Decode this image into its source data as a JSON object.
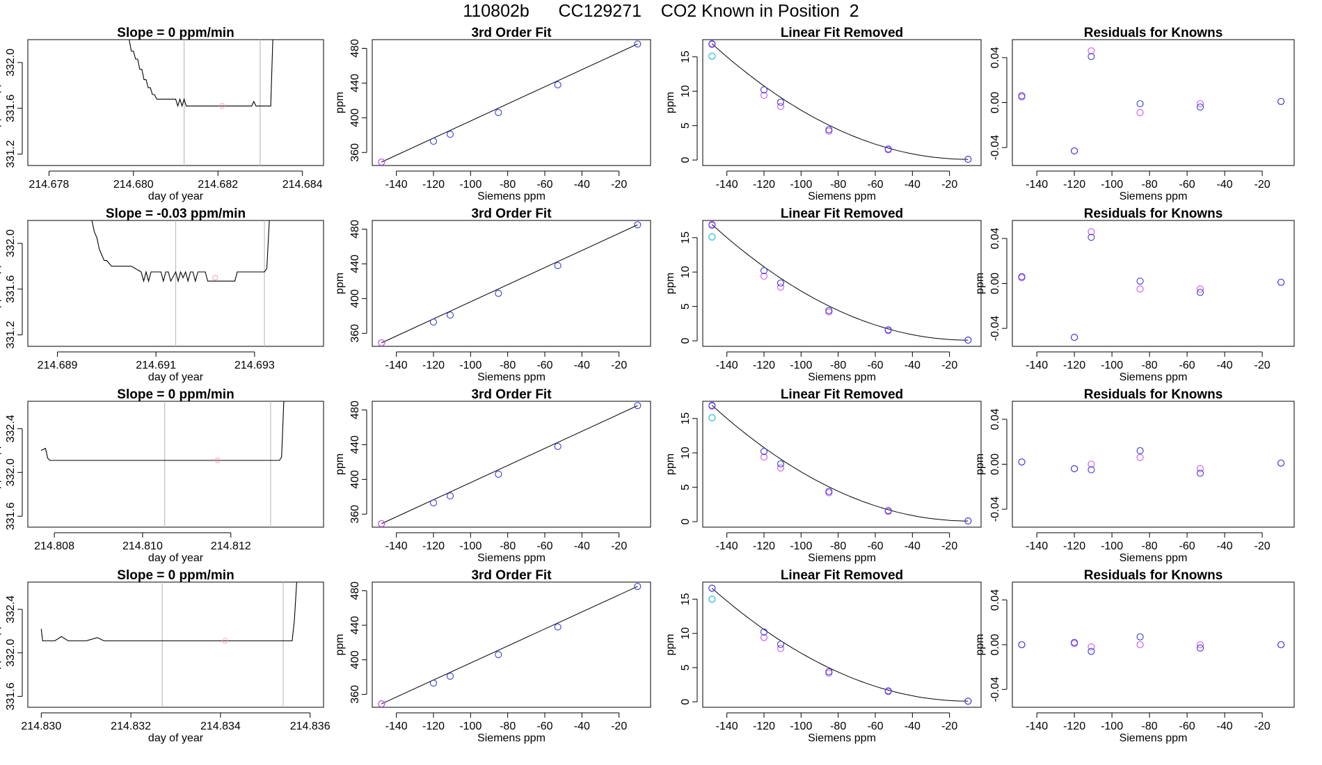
{
  "header": {
    "title": "110802b      CC129271    CO2 Known in Position  2"
  },
  "colors": {
    "trace": "#000000",
    "vline": "#bdbdbd",
    "fit_point": "#3a3ad6",
    "residual_point": "#cc55ee",
    "linear_point": "#cc55ee",
    "cyan_point": "#22bbdd",
    "time_marker": "#f0a0c0"
  },
  "chart_data": [
    {
      "type": "line",
      "panel": "time",
      "row": 0,
      "title": "Slope =  0  ppm/min",
      "xlabel": "day of year",
      "ylabel": "approx. ppm",
      "xlim": [
        214.6775,
        214.6845
      ],
      "xticks": [
        214.678,
        214.68,
        214.682,
        214.684
      ],
      "xtick_labels": [
        "214.678",
        "214.680",
        "214.682",
        "214.684"
      ],
      "ylim": [
        331.1,
        332.2
      ],
      "yticks": [
        331.2,
        331.6,
        332.0
      ],
      "ytick_labels": [
        "331.2",
        "331.6",
        "332.0"
      ],
      "trace_x": [
        214.6799,
        214.67995,
        214.68,
        214.68005,
        214.6801,
        214.68015,
        214.6802,
        214.68025,
        214.6803,
        214.68035,
        214.6804,
        214.68045,
        214.6805,
        214.68055,
        214.6806,
        214.6807,
        214.6808,
        214.6809,
        214.681,
        214.68105,
        214.6811,
        214.68115,
        214.6812,
        214.68125,
        214.6813,
        214.6814,
        214.6815,
        214.682,
        214.6825,
        214.6828,
        214.68285,
        214.6829,
        214.68295,
        214.683,
        214.6831,
        214.6832,
        214.68325,
        214.6833
      ],
      "trace_y": [
        332.2,
        332.1,
        332.1,
        332.03,
        332.03,
        331.94,
        331.94,
        331.85,
        331.85,
        331.78,
        331.78,
        331.72,
        331.72,
        331.68,
        331.68,
        331.68,
        331.68,
        331.68,
        331.68,
        331.62,
        331.68,
        331.62,
        331.68,
        331.62,
        331.62,
        331.62,
        331.62,
        331.62,
        331.62,
        331.62,
        331.66,
        331.62,
        331.62,
        331.62,
        331.62,
        331.62,
        331.62,
        332.2
      ],
      "vlines": [
        214.6812,
        214.683
      ],
      "marker": [
        214.6821,
        331.62
      ]
    },
    {
      "type": "scatter",
      "panel": "fit",
      "row": 0,
      "title": "3rd Order Fit",
      "xlabel": "Siemens ppm",
      "ylabel": "ppm",
      "xlim": [
        -153,
        -3
      ],
      "xticks": [
        -140,
        -120,
        -100,
        -80,
        -60,
        -40,
        -20
      ],
      "xtick_labels": [
        "-140",
        "-120",
        "-100",
        "-80",
        "-60",
        "-40",
        "-20"
      ],
      "ylim": [
        345,
        490
      ],
      "yticks": [
        360,
        400,
        440,
        480
      ],
      "ytick_labels": [
        "360",
        "400",
        "440",
        "480"
      ],
      "x": [
        -148,
        -120,
        -111,
        -85,
        -53,
        -10
      ],
      "y": [
        349,
        373,
        381,
        406,
        438,
        485
      ]
    },
    {
      "type": "scatter",
      "panel": "linear",
      "row": 0,
      "title": "Linear Fit Removed",
      "xlabel": "Siemens ppm",
      "ylabel": "ppm",
      "xlim": [
        -153,
        -3
      ],
      "xticks": [
        -140,
        -120,
        -100,
        -80,
        -60,
        -40,
        -20
      ],
      "xtick_labels": [
        "-140",
        "-120",
        "-100",
        "-80",
        "-60",
        "-40",
        "-20"
      ],
      "ylim": [
        -0.8,
        17.5
      ],
      "yticks": [
        0,
        5,
        10,
        15
      ],
      "ytick_labels": [
        "0",
        "5",
        "10",
        "15"
      ],
      "x": [
        -148,
        -120,
        -111,
        -85,
        -53,
        -10
      ],
      "y_fit": [
        16.9,
        10.2,
        8.4,
        4.4,
        1.6,
        0.1
      ],
      "y_linear": [
        16.8,
        9.4,
        7.8,
        4.2,
        1.5,
        0.1
      ],
      "cyan": [
        -148,
        15.1
      ]
    },
    {
      "type": "scatter",
      "panel": "resid",
      "row": 0,
      "title": "Residuals for Knowns",
      "xlabel": "Siemens ppm",
      "ylabel": "",
      "xlim": [
        -153,
        -3
      ],
      "xticks": [
        -140,
        -120,
        -100,
        -80,
        -60,
        -40,
        -20
      ],
      "xtick_labels": [
        "-140",
        "-120",
        "-100",
        "-80",
        "-60",
        "-40",
        "-20"
      ],
      "ylim": [
        -0.056,
        0.056
      ],
      "yticks": [
        -0.04,
        0.0,
        0.04
      ],
      "ytick_labels": [
        "-0.04",
        "0.00",
        "0.04"
      ],
      "x": [
        -148,
        -120,
        -111,
        -85,
        -53,
        -10
      ],
      "y_a": [
        0.006,
        -0.043,
        0.041,
        -0.001,
        -0.004,
        0.001
      ],
      "y_b": [
        0.005,
        -0.043,
        0.046,
        -0.009,
        -0.001,
        0.001
      ]
    },
    {
      "type": "line",
      "panel": "time",
      "row": 1,
      "title": "Slope =  -0.03  ppm/min",
      "xlabel": "day of year",
      "ylabel": "approx. ppm",
      "xlim": [
        214.6884,
        214.6944
      ],
      "xticks": [
        214.689,
        214.691,
        214.693
      ],
      "xtick_labels": [
        "214.689",
        "214.691",
        "214.693"
      ],
      "ylim": [
        331.1,
        332.2
      ],
      "yticks": [
        331.2,
        331.6,
        332.0
      ],
      "ytick_labels": [
        "331.2",
        "331.6",
        "332.0"
      ],
      "trace_x": [
        214.6897,
        214.68975,
        214.6898,
        214.68985,
        214.6899,
        214.68995,
        214.69,
        214.6901,
        214.6902,
        214.6905,
        214.6907,
        214.69075,
        214.6908,
        214.69085,
        214.6909,
        214.6911,
        214.69115,
        214.6912,
        214.69125,
        214.6913,
        214.6914,
        214.69145,
        214.6915,
        214.69155,
        214.6916,
        214.69165,
        214.6917,
        214.69175,
        214.6918,
        214.69185,
        214.6919,
        214.692,
        214.69205,
        214.6921,
        214.6923,
        214.6926,
        214.69265,
        214.6928,
        214.6932,
        214.69325,
        214.6933
      ],
      "trace_y": [
        332.2,
        332.1,
        332.05,
        331.95,
        331.9,
        331.85,
        331.85,
        331.8,
        331.8,
        331.8,
        331.75,
        331.67,
        331.75,
        331.67,
        331.75,
        331.75,
        331.67,
        331.75,
        331.75,
        331.67,
        331.75,
        331.67,
        331.75,
        331.7,
        331.75,
        331.67,
        331.75,
        331.75,
        331.67,
        331.75,
        331.75,
        331.75,
        331.67,
        331.67,
        331.67,
        331.67,
        331.75,
        331.75,
        331.75,
        331.78,
        332.2
      ],
      "vlines": [
        214.6914,
        214.6932
      ],
      "marker": [
        214.6922,
        331.7
      ]
    },
    {
      "type": "scatter",
      "panel": "fit",
      "row": 1,
      "title": "3rd Order Fit",
      "xlabel": "Siemens ppm",
      "ylabel": "ppm",
      "xlim": [
        -153,
        -3
      ],
      "xticks": [
        -140,
        -120,
        -100,
        -80,
        -60,
        -40,
        -20
      ],
      "xtick_labels": [
        "-140",
        "-120",
        "-100",
        "-80",
        "-60",
        "-40",
        "-20"
      ],
      "ylim": [
        345,
        490
      ],
      "yticks": [
        360,
        400,
        440,
        480
      ],
      "ytick_labels": [
        "360",
        "400",
        "440",
        "480"
      ],
      "x": [
        -148,
        -120,
        -111,
        -85,
        -53,
        -10
      ],
      "y": [
        349,
        373,
        381,
        406,
        438,
        485
      ]
    },
    {
      "type": "scatter",
      "panel": "linear",
      "row": 1,
      "title": "Linear Fit Removed",
      "xlabel": "Siemens ppm",
      "ylabel": "ppm",
      "xlim": [
        -153,
        -3
      ],
      "xticks": [
        -140,
        -120,
        -100,
        -80,
        -60,
        -40,
        -20
      ],
      "xtick_labels": [
        "-140",
        "-120",
        "-100",
        "-80",
        "-60",
        "-40",
        "-20"
      ],
      "ylim": [
        -0.8,
        17.5
      ],
      "yticks": [
        0,
        5,
        10,
        15
      ],
      "ytick_labels": [
        "0",
        "5",
        "10",
        "15"
      ],
      "x": [
        -148,
        -120,
        -111,
        -85,
        -53,
        -10
      ],
      "y_fit": [
        16.9,
        10.2,
        8.4,
        4.4,
        1.6,
        0.1
      ],
      "y_linear": [
        16.8,
        9.4,
        7.8,
        4.2,
        1.5,
        0.1
      ],
      "cyan": [
        -148,
        15.1
      ]
    },
    {
      "type": "scatter",
      "panel": "resid",
      "row": 1,
      "title": "Residuals for Knowns",
      "xlabel": "Siemens ppm",
      "ylabel": "ppm",
      "xlim": [
        -153,
        -3
      ],
      "xticks": [
        -140,
        -120,
        -100,
        -80,
        -60,
        -40,
        -20
      ],
      "xtick_labels": [
        "-140",
        "-120",
        "-100",
        "-80",
        "-60",
        "-40",
        "-20"
      ],
      "ylim": [
        -0.056,
        0.056
      ],
      "yticks": [
        -0.04,
        0.0,
        0.04
      ],
      "ytick_labels": [
        "-0.04",
        "0.00",
        "0.04"
      ],
      "x": [
        -148,
        -120,
        -111,
        -85,
        -53,
        -10
      ],
      "y_a": [
        0.006,
        -0.048,
        0.041,
        0.002,
        -0.008,
        0.001
      ],
      "y_b": [
        0.005,
        -0.048,
        0.046,
        -0.005,
        -0.005,
        0.001
      ]
    },
    {
      "type": "line",
      "panel": "time",
      "row": 2,
      "title": "Slope =  0  ppm/min",
      "xlabel": "day of year",
      "ylabel": "approx. ppm",
      "xlim": [
        214.8074,
        214.8141
      ],
      "xticks": [
        214.808,
        214.81,
        214.812
      ],
      "xtick_labels": [
        "214.808",
        "214.810",
        "214.812"
      ],
      "ylim": [
        331.5,
        332.65
      ],
      "yticks": [
        331.6,
        332.0,
        332.4
      ],
      "ytick_labels": [
        "331.6",
        "332.0",
        "332.4"
      ],
      "trace_x": [
        214.8077,
        214.8078,
        214.80785,
        214.8079,
        214.8085,
        214.8095,
        214.8105,
        214.8115,
        214.8125,
        214.8131,
        214.81315,
        214.8132
      ],
      "trace_y": [
        332.2,
        332.22,
        332.13,
        332.11,
        332.11,
        332.11,
        332.11,
        332.11,
        332.11,
        332.11,
        332.14,
        332.65
      ],
      "vlines": [
        214.8105,
        214.8129
      ],
      "marker": [
        214.8117,
        332.11
      ]
    },
    {
      "type": "scatter",
      "panel": "fit",
      "row": 2,
      "title": "3rd Order Fit",
      "xlabel": "Siemens ppm",
      "ylabel": "ppm",
      "xlim": [
        -153,
        -3
      ],
      "xticks": [
        -140,
        -120,
        -100,
        -80,
        -60,
        -40,
        -20
      ],
      "xtick_labels": [
        "-140",
        "-120",
        "-100",
        "-80",
        "-60",
        "-40",
        "-20"
      ],
      "ylim": [
        345,
        490
      ],
      "yticks": [
        360,
        400,
        440,
        480
      ],
      "ytick_labels": [
        "360",
        "400",
        "440",
        "480"
      ],
      "x": [
        -148,
        -120,
        -111,
        -85,
        -53,
        -10
      ],
      "y": [
        349,
        373,
        381,
        406,
        438,
        485
      ]
    },
    {
      "type": "scatter",
      "panel": "linear",
      "row": 2,
      "title": "Linear Fit Removed",
      "xlabel": "Siemens ppm",
      "ylabel": "ppm",
      "xlim": [
        -153,
        -3
      ],
      "xticks": [
        -140,
        -120,
        -100,
        -80,
        -60,
        -40,
        -20
      ],
      "xtick_labels": [
        "-140",
        "-120",
        "-100",
        "-80",
        "-60",
        "-40",
        "-20"
      ],
      "ylim": [
        -0.8,
        17.5
      ],
      "yticks": [
        0,
        5,
        10,
        15
      ],
      "ytick_labels": [
        "0",
        "5",
        "10",
        "15"
      ],
      "x": [
        -148,
        -120,
        -111,
        -85,
        -53,
        -10
      ],
      "y_fit": [
        16.9,
        10.2,
        8.4,
        4.4,
        1.6,
        0.1
      ],
      "y_linear": [
        16.8,
        9.4,
        7.8,
        4.2,
        1.5,
        0.1
      ],
      "cyan": [
        -148,
        15.1
      ]
    },
    {
      "type": "scatter",
      "panel": "resid",
      "row": 2,
      "title": "Residuals for Knowns",
      "xlabel": "Siemens ppm",
      "ylabel": "ppm",
      "xlim": [
        -153,
        -3
      ],
      "xticks": [
        -140,
        -120,
        -100,
        -80,
        -60,
        -40,
        -20
      ],
      "xtick_labels": [
        "-140",
        "-120",
        "-100",
        "-80",
        "-60",
        "-40",
        "-20"
      ],
      "ylim": [
        -0.056,
        0.056
      ],
      "yticks": [
        -0.04,
        0.0,
        0.04
      ],
      "ytick_labels": [
        "-0.04",
        "0.00",
        "0.04"
      ],
      "x": [
        -148,
        -120,
        -111,
        -85,
        -53,
        -10
      ],
      "y_a": [
        0.002,
        -0.004,
        -0.005,
        0.012,
        -0.008,
        0.001
      ],
      "y_b": [
        0.002,
        -0.004,
        0.0,
        0.006,
        -0.004,
        0.001
      ]
    },
    {
      "type": "line",
      "panel": "time",
      "row": 3,
      "title": "Slope =  0  ppm/min",
      "xlabel": "day of year",
      "ylabel": "approx. ppm",
      "xlim": [
        214.8297,
        214.8363
      ],
      "xticks": [
        214.83,
        214.832,
        214.834,
        214.836
      ],
      "xtick_labels": [
        "214.830",
        "214.832",
        "214.834",
        "214.836"
      ],
      "ylim": [
        331.5,
        332.65
      ],
      "yticks": [
        331.6,
        332.0,
        332.4
      ],
      "ytick_labels": [
        "331.6",
        "332.0",
        "332.4"
      ],
      "trace_x": [
        214.83,
        214.83003,
        214.8301,
        214.8303,
        214.83045,
        214.8306,
        214.831,
        214.83125,
        214.8314,
        214.832,
        214.833,
        214.834,
        214.835,
        214.8356,
        214.83565,
        214.8357
      ],
      "trace_y": [
        332.22,
        332.11,
        332.11,
        332.11,
        332.15,
        332.11,
        332.11,
        332.14,
        332.11,
        332.11,
        332.11,
        332.11,
        332.11,
        332.11,
        332.3,
        332.65
      ],
      "vlines": [
        214.8327,
        214.8354
      ],
      "marker": [
        214.8341,
        332.11
      ]
    },
    {
      "type": "scatter",
      "panel": "fit",
      "row": 3,
      "title": "3rd Order Fit",
      "xlabel": "Siemens ppm",
      "ylabel": "ppm",
      "xlim": [
        -153,
        -3
      ],
      "xticks": [
        -140,
        -120,
        -100,
        -80,
        -60,
        -40,
        -20
      ],
      "xtick_labels": [
        "-140",
        "-120",
        "-100",
        "-80",
        "-60",
        "-40",
        "-20"
      ],
      "ylim": [
        345,
        490
      ],
      "yticks": [
        360,
        400,
        440,
        480
      ],
      "ytick_labels": [
        "360",
        "400",
        "440",
        "480"
      ],
      "x": [
        -148,
        -120,
        -111,
        -85,
        -53,
        -10
      ],
      "y": [
        349,
        373,
        381,
        406,
        438,
        485
      ]
    },
    {
      "type": "scatter",
      "panel": "linear",
      "row": 3,
      "title": "Linear Fit Removed",
      "xlabel": "Siemens ppm",
      "ylabel": "ppm",
      "xlim": [
        -153,
        -3
      ],
      "xticks": [
        -140,
        -120,
        -100,
        -80,
        -60,
        -40,
        -20
      ],
      "xtick_labels": [
        "-140",
        "-120",
        "-100",
        "-80",
        "-60",
        "-40",
        "-20"
      ],
      "ylim": [
        -0.8,
        17.5
      ],
      "yticks": [
        0,
        5,
        10,
        15
      ],
      "ytick_labels": [
        "0",
        "5",
        "10",
        "15"
      ],
      "x": [
        -148,
        -120,
        -111,
        -85,
        -53,
        -10
      ],
      "y_fit": [
        16.6,
        10.2,
        8.4,
        4.4,
        1.6,
        0.1
      ],
      "y_linear": [
        16.6,
        9.4,
        7.8,
        4.2,
        1.5,
        0.1
      ],
      "cyan": [
        -148,
        15.0
      ]
    },
    {
      "type": "scatter",
      "panel": "resid",
      "row": 3,
      "title": "Residuals for Knowns",
      "xlabel": "Siemens ppm",
      "ylabel": "ppm",
      "xlim": [
        -153,
        -3
      ],
      "xticks": [
        -140,
        -120,
        -100,
        -80,
        -60,
        -40,
        -20
      ],
      "xtick_labels": [
        "-140",
        "-120",
        "-100",
        "-80",
        "-60",
        "-40",
        "-20"
      ],
      "ylim": [
        -0.056,
        0.056
      ],
      "yticks": [
        -0.04,
        0.0,
        0.04
      ],
      "ytick_labels": [
        "-0.04",
        "0.00",
        "0.04"
      ],
      "x": [
        -148,
        -120,
        -111,
        -85,
        -53,
        -10
      ],
      "y_a": [
        0.0,
        0.002,
        -0.006,
        0.007,
        -0.003,
        0.0
      ],
      "y_b": [
        0.0,
        0.001,
        -0.002,
        0.0,
        0.0,
        0.0
      ]
    }
  ]
}
